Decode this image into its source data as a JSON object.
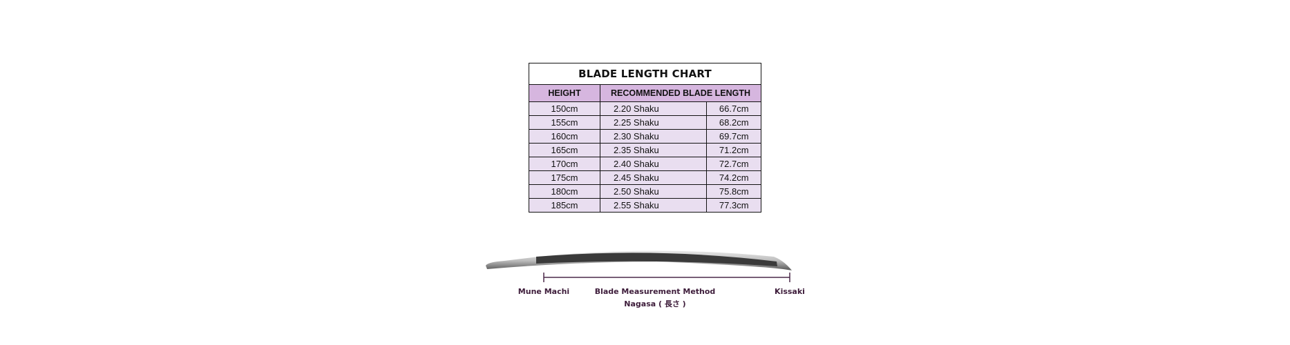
{
  "table": {
    "title": "BLADE LENGTH CHART",
    "headers": [
      "HEIGHT",
      "RECOMMENDED BLADE LENGTH"
    ],
    "rows": [
      [
        "150cm",
        "2.20 Shaku",
        "66.7cm"
      ],
      [
        "155cm",
        "2.25 Shaku",
        "68.2cm"
      ],
      [
        "160cm",
        "2.30 Shaku",
        "69.7cm"
      ],
      [
        "165cm",
        "2.35 Shaku",
        "71.2cm"
      ],
      [
        "170cm",
        "2.40 Shaku",
        "72.7cm"
      ],
      [
        "175cm",
        "2.45 Shaku",
        "74.2cm"
      ],
      [
        "180cm",
        "2.50 Shaku",
        "75.8cm"
      ],
      [
        "185cm",
        "2.55 Shaku",
        "77.3cm"
      ]
    ]
  },
  "diagram": {
    "left_label": "Mune Machi",
    "center_label": "Blade Measurement Method",
    "center_sub": "Nagasa ( 長さ )",
    "right_label": "Kissaki"
  },
  "colors": {
    "header_bg": "#d6b6df",
    "row_bg": "#e9def0",
    "label_text": "#3d1c3a"
  }
}
